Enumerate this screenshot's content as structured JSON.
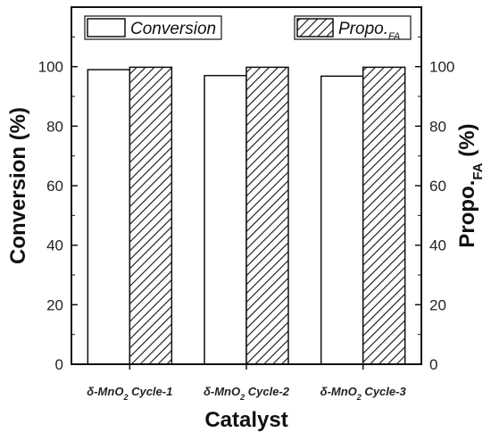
{
  "chart_data": {
    "type": "bar",
    "categories": [
      {
        "prefix": "δ-MnO",
        "sub": "2",
        "suffix": " Cycle-1"
      },
      {
        "prefix": "δ-MnO",
        "sub": "2",
        "suffix": " Cycle-2"
      },
      {
        "prefix": "δ-MnO",
        "sub": "2",
        "suffix": " Cycle-3"
      }
    ],
    "series": [
      {
        "name": "Conversion",
        "values": [
          99,
          97,
          96.8
        ],
        "pattern": "none",
        "fill": "#ffffff"
      },
      {
        "name": "Propo.",
        "name_sub": "FA",
        "values": [
          99.8,
          99.8,
          99.8
        ],
        "pattern": "hatch",
        "fill": "#ffffff"
      }
    ],
    "xlabel": "Catalyst",
    "ylabel": "Conversion (%)",
    "ylabel_right": {
      "main": "Propo.",
      "sub": "FA",
      "unit": " (%)"
    },
    "ylim": [
      0,
      120
    ],
    "yticks": [
      0,
      20,
      40,
      60,
      80,
      100
    ],
    "yticks_right": [
      0,
      20,
      40,
      60,
      80,
      100
    ],
    "legend": "top",
    "grid": false,
    "colors": {
      "stroke": "#111111",
      "background": "#ffffff"
    }
  }
}
